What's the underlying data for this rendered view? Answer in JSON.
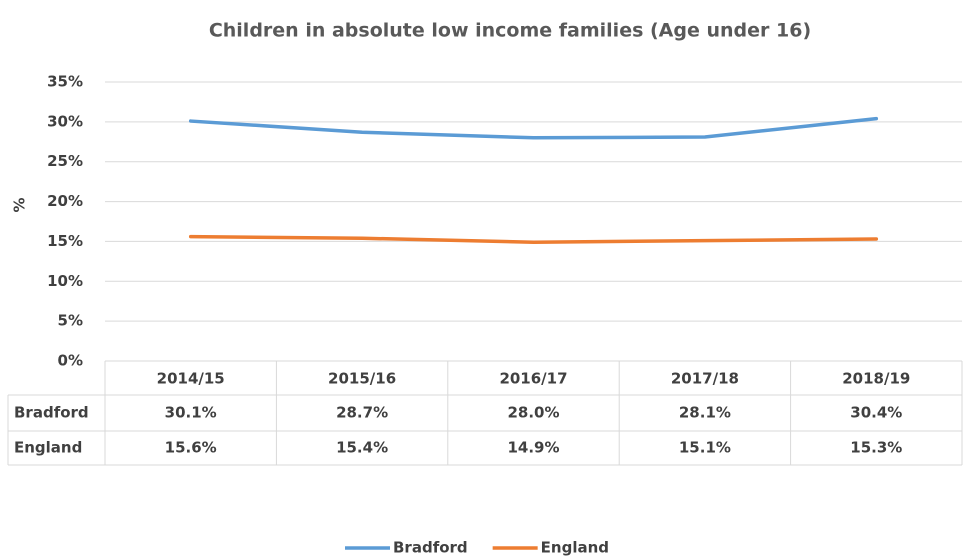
{
  "chart_data": {
    "type": "line",
    "title": "Children in absolute low income families (Age under 16)",
    "y_label": "%",
    "categories": [
      "2014/15",
      "2015/16",
      "2016/17",
      "2017/18",
      "2018/19"
    ],
    "series": [
      {
        "name": "Bradford",
        "color": "#5b9bd5",
        "values": [
          30.1,
          28.7,
          28.0,
          28.1,
          30.4
        ],
        "value_labels": [
          "30.1%",
          "28.7%",
          "28.0%",
          "28.1%",
          "30.4%"
        ]
      },
      {
        "name": "England",
        "color": "#ed7d31",
        "values": [
          15.6,
          15.4,
          14.9,
          15.1,
          15.3
        ],
        "value_labels": [
          "15.6%",
          "15.4%",
          "14.9%",
          "15.1%",
          "15.3%"
        ]
      }
    ],
    "ylim": [
      0,
      35
    ],
    "yticks": [
      {
        "value": 0,
        "label": "0%"
      },
      {
        "value": 5,
        "label": "5%"
      },
      {
        "value": 10,
        "label": "10%"
      },
      {
        "value": 15,
        "label": "15%"
      },
      {
        "value": 20,
        "label": "20%"
      },
      {
        "value": 25,
        "label": "25%"
      },
      {
        "value": 30,
        "label": "30%"
      },
      {
        "value": 35,
        "label": "35%"
      }
    ],
    "grid": true,
    "legend": "bottom"
  }
}
